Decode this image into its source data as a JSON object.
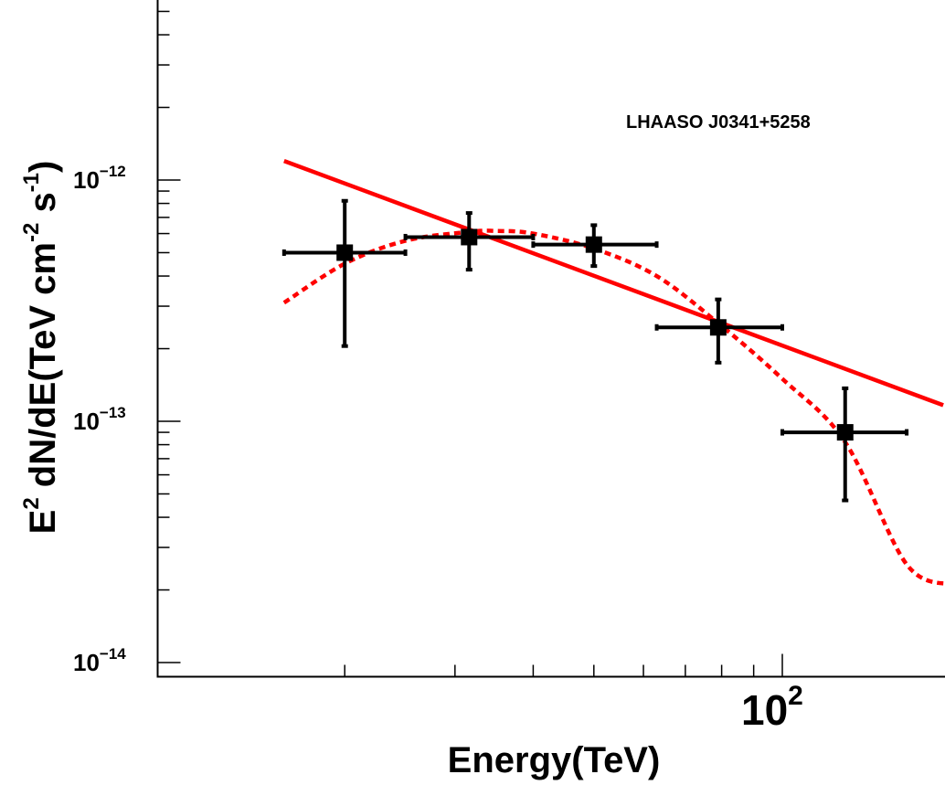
{
  "chart_data": {
    "type": "scatter",
    "annotation": "LHAASO J0341+5258",
    "xlabel": "Energy(TeV)",
    "ylabel": {
      "base": "E",
      "base_sup": "2",
      "mid": " dN/dE(TeV cm",
      "mid_sup": "-2",
      "tail": " s",
      "tail_sup": "-1",
      "end": ")"
    },
    "x_scale": "log",
    "y_scale": "log",
    "xlim": [
      15,
      160
    ],
    "ylim": [
      1e-14,
      7e-12
    ],
    "grid": false,
    "x_tick_labels": [
      {
        "value": 100,
        "base": "10",
        "exp": "2"
      }
    ],
    "y_tick_labels": [
      {
        "value": 1e-12,
        "base": "10",
        "exp": "−12"
      },
      {
        "value": 1e-13,
        "base": "10",
        "exp": "−13"
      },
      {
        "value": 1e-14,
        "base": "10",
        "exp": "−14"
      }
    ],
    "colors": {
      "points": "#000000",
      "fit": "#ff0000"
    },
    "points": [
      {
        "x": 20,
        "y": 5e-13,
        "xlow": 16,
        "xhigh": 25,
        "ylow": 2.05e-13,
        "yhigh": 8.2e-13
      },
      {
        "x": 31.6,
        "y": 5.8e-13,
        "xlow": 25,
        "xhigh": 40,
        "ylow": 4.25e-13,
        "yhigh": 7.3e-13
      },
      {
        "x": 50,
        "y": 5.4e-13,
        "xlow": 40,
        "xhigh": 63,
        "ylow": 4.4e-13,
        "yhigh": 6.5e-13
      },
      {
        "x": 79,
        "y": 2.45e-13,
        "xlow": 63,
        "xhigh": 100,
        "ylow": 1.75e-13,
        "yhigh": 3.2e-13
      },
      {
        "x": 126,
        "y": 9e-14,
        "xlow": 100,
        "xhigh": 158,
        "ylow": 4.7e-14,
        "yhigh": 1.37e-13
      }
    ],
    "power_law": {
      "style": "solid",
      "x": [
        16,
        158
      ],
      "y": [
        1.2e-12,
        1.05e-13
      ]
    },
    "log_parabola": {
      "style": "dotted",
      "x": [
        16,
        20,
        25,
        31.6,
        35,
        40,
        50,
        63,
        79,
        100,
        126,
        158
      ],
      "y": [
        3.1e-13,
        4.5e-13,
        5.6e-13,
        6.1e-13,
        6.15e-13,
        6e-13,
        5.2e-13,
        4e-13,
        2.55e-13,
        1.5e-13,
        8.2e-14,
        2.55e-14
      ]
    }
  }
}
